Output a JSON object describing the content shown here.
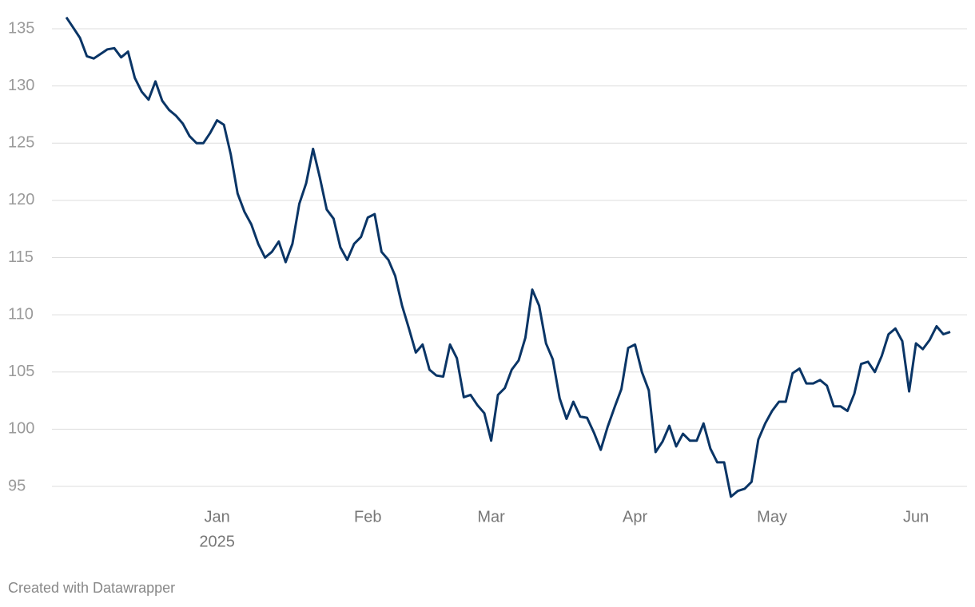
{
  "chart_data": {
    "type": "line",
    "categories": [
      null,
      null,
      null,
      null,
      null,
      null,
      null,
      null,
      null,
      null,
      null,
      null,
      null,
      null,
      null,
      null,
      null,
      null,
      null,
      null,
      null,
      null,
      "Jan",
      null,
      null,
      null,
      null,
      null,
      null,
      null,
      null,
      null,
      null,
      null,
      null,
      null,
      null,
      null,
      null,
      null,
      null,
      null,
      null,
      null,
      "Feb",
      null,
      null,
      null,
      null,
      null,
      null,
      null,
      null,
      null,
      null,
      null,
      null,
      null,
      null,
      null,
      null,
      null,
      "Mar",
      null,
      null,
      null,
      null,
      null,
      null,
      null,
      null,
      null,
      null,
      null,
      null,
      null,
      null,
      null,
      null,
      null,
      null,
      null,
      null,
      "Apr",
      null,
      null,
      null,
      null,
      null,
      null,
      null,
      null,
      null,
      null,
      null,
      null,
      null,
      null,
      null,
      null,
      null,
      null,
      null,
      "May",
      null,
      null,
      null,
      null,
      null,
      null,
      null,
      null,
      null,
      null,
      null,
      null,
      null,
      null,
      null,
      null,
      null,
      null,
      null,
      null,
      "Jun",
      null,
      null,
      null,
      null,
      null
    ],
    "year_label": "2025",
    "series": [
      {
        "color": "#0a3566",
        "values": [
          136.0,
          135.1,
          134.2,
          132.6,
          132.4,
          132.8,
          133.2,
          133.3,
          132.5,
          133.0,
          130.7,
          129.5,
          128.8,
          130.4,
          128.7,
          127.9,
          127.4,
          126.7,
          125.6,
          125.0,
          125.0,
          125.9,
          127.0,
          126.6,
          124.0,
          120.6,
          119.0,
          117.9,
          116.2,
          115.0,
          115.5,
          116.4,
          114.6,
          116.2,
          119.7,
          121.5,
          124.5,
          122.0,
          119.2,
          118.4,
          115.9,
          114.8,
          116.2,
          116.8,
          118.5,
          118.8,
          115.5,
          114.8,
          113.4,
          110.8,
          108.8,
          106.7,
          107.4,
          105.2,
          104.7,
          104.6,
          107.4,
          106.2,
          102.8,
          103.0,
          102.1,
          101.4,
          99.0,
          103.0,
          103.6,
          105.2,
          106.0,
          108.0,
          112.2,
          110.8,
          107.5,
          106.1,
          102.7,
          100.9,
          102.4,
          101.1,
          101.0,
          99.7,
          98.2,
          100.2,
          101.9,
          103.5,
          107.1,
          107.4,
          105.0,
          103.4,
          98.0,
          98.9,
          100.3,
          98.5,
          99.6,
          99.0,
          99.0,
          100.5,
          98.3,
          97.1,
          97.1,
          94.1,
          94.6,
          94.8,
          95.4,
          99.1,
          100.5,
          101.6,
          102.4,
          102.4,
          104.9,
          105.3,
          104.0,
          104.0,
          104.3,
          103.8,
          102.0,
          102.0,
          101.6,
          103.1,
          105.7,
          105.9,
          105.0,
          106.4,
          108.3,
          108.8,
          107.7,
          103.3,
          107.5,
          107.0,
          107.8,
          109.0,
          108.3,
          108.5
        ]
      }
    ],
    "ylim": [
      93.8,
      136.2
    ],
    "yticks": [
      95,
      100,
      105,
      110,
      115,
      120,
      125,
      130,
      135
    ],
    "grid": true,
    "credit": "Created with Datawrapper"
  }
}
